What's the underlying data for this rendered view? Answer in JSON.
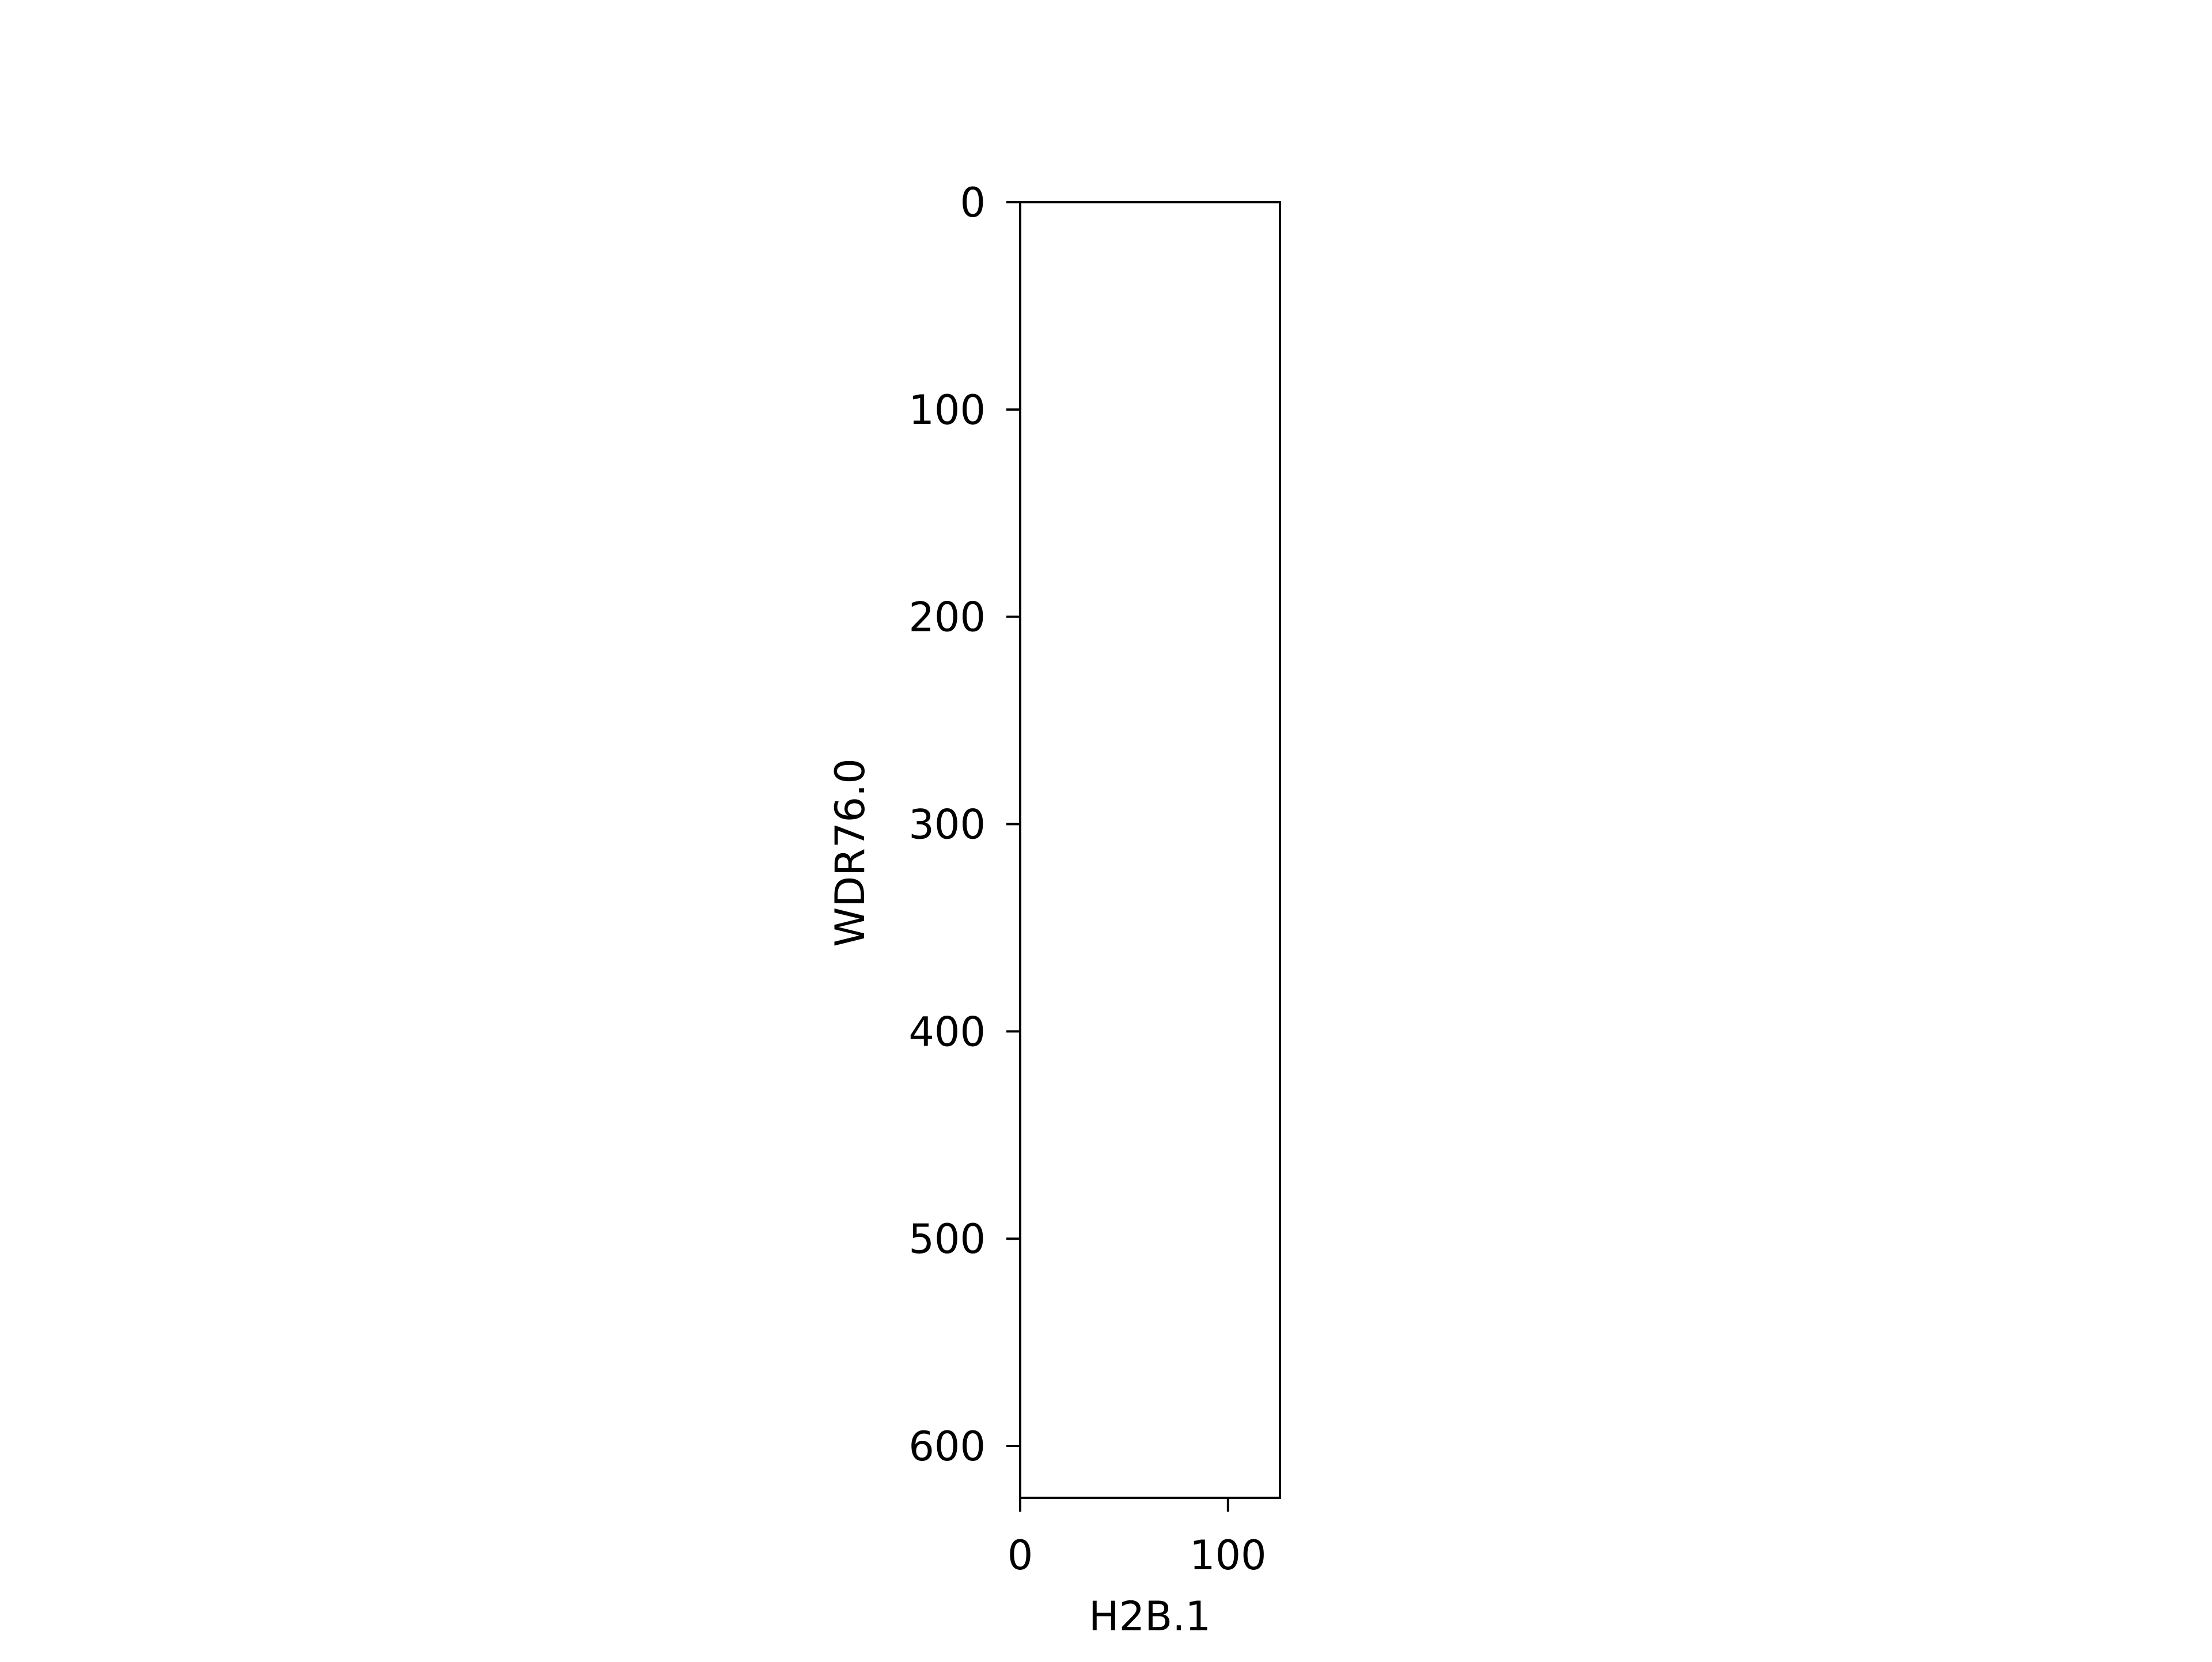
{
  "chart_data": {
    "type": "heatmap",
    "title": "",
    "xlabel": "H2B.1",
    "ylabel": "WDR76.0",
    "xlim": [
      0,
      125
    ],
    "ylim": [
      625,
      0
    ],
    "x_ticks": [
      0,
      100
    ],
    "x_tick_labels": [
      "0",
      "100"
    ],
    "y_ticks": [
      0,
      100,
      200,
      300,
      400,
      500,
      600
    ],
    "y_tick_labels": [
      "0",
      "100",
      "200",
      "300",
      "400",
      "500",
      "600"
    ],
    "grid": false,
    "values": [],
    "colors": {
      "frame": "#000000",
      "background": "#ffffff"
    }
  }
}
